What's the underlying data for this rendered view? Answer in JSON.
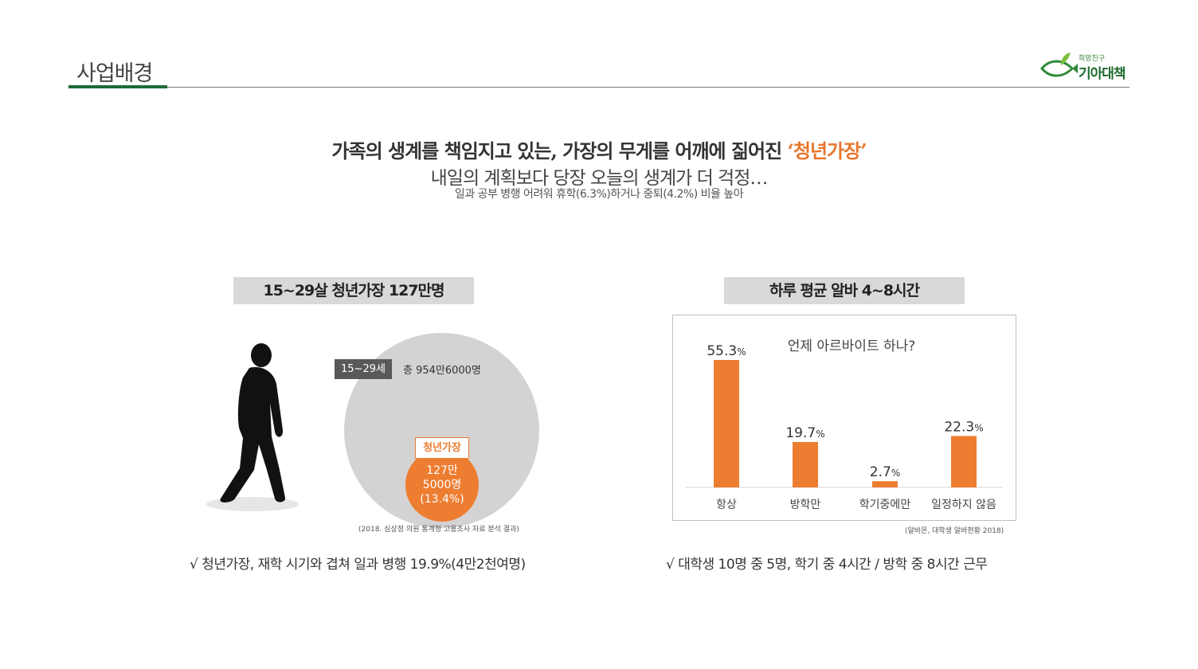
{
  "page": {
    "title": "사업배경"
  },
  "logo": {
    "tagline": "희망친구",
    "name": "기아대책"
  },
  "headline": {
    "line1_prefix": "가족의 생계를 책임지고 있는, 가장의 무게를 어깨에 짊어진 ",
    "line1_highlight": "‘청년가장’",
    "line2": "내일의 계획보다 당장 오늘의 생계가 더 걱정…",
    "line3": "일과 공부 병행 어려워 휴학(6.3%)하거나 중퇴(4.2%) 비율 높아"
  },
  "left_section": {
    "label": "15~29살 청년가장 127만명",
    "age_badge": "15~29세",
    "total": "총 954만6000명",
    "head_badge": "청년가장",
    "head_line1": "127만",
    "head_line2": "5000명",
    "head_line3": "(13.4%)",
    "source": "(2018. 심상정 의원 통계청 고용조사 자료 분석 결과)",
    "note": "√  청년가장, 재학 시기와 겹쳐 일과 병행 19.9%(4만2천여명)"
  },
  "right_section": {
    "label": "하루 평균 알바 4~8시간",
    "source": "(알바몬, 대학생 알바현황 2018)",
    "note": "√  대학생 10명 중 5명, 학기 중 4시간 / 방학 중 8시간 근무"
  },
  "colors": {
    "accent": "#ed7d31",
    "brand_green": "#1e6b35",
    "circle_gray": "#d4d2d3",
    "label_gray": "#d9d9d9"
  },
  "icons": [
    "walking-man-silhouette",
    "fish-leaf-logo"
  ],
  "chart_data": {
    "type": "bar",
    "title": "언제 아르바이트 하나?",
    "categories": [
      "항상",
      "방학만",
      "학기중에만",
      "일정하지 않음"
    ],
    "values": [
      55.3,
      19.7,
      2.7,
      22.3
    ],
    "value_labels": [
      "55.3",
      "19.7",
      "2.7",
      "22.3"
    ],
    "unit": "%",
    "ylim": [
      0,
      60
    ],
    "grid": false,
    "legend": "none"
  }
}
